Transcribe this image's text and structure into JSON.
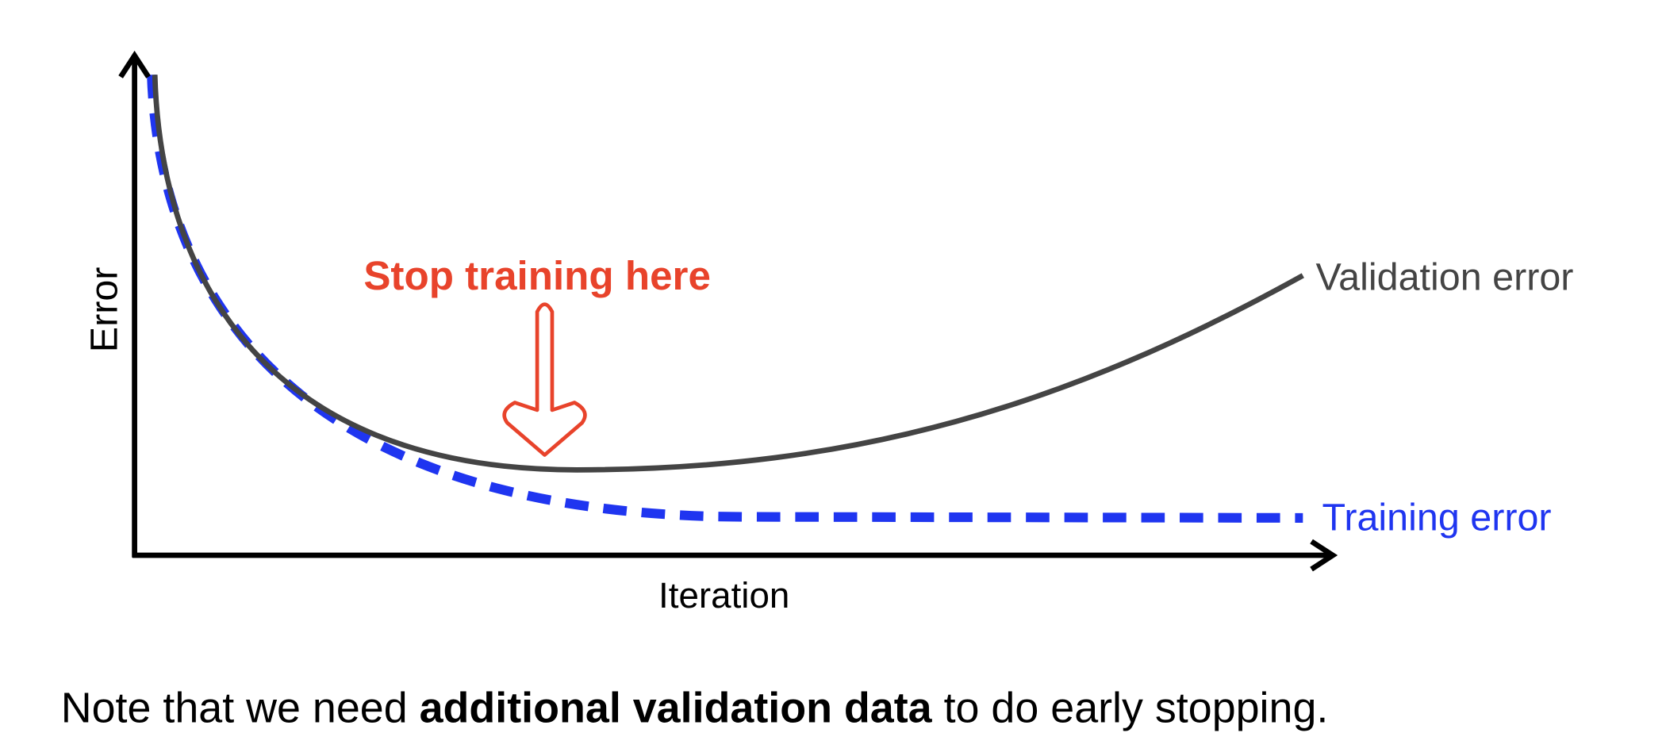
{
  "diagram": {
    "y_axis_label": "Error",
    "x_axis_label": "Iteration",
    "validation_label": "Validation error",
    "training_label": "Training error",
    "annotation": "Stop training here"
  },
  "note": {
    "before": "Note that we need ",
    "bold": "additional validation data",
    "after": " to do early stopping."
  }
}
